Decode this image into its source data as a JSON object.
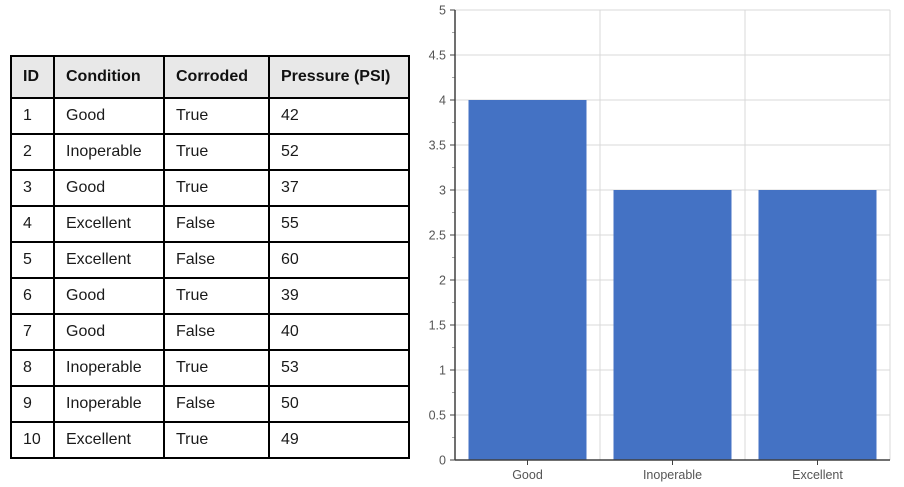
{
  "table": {
    "headers": [
      "ID",
      "Condition",
      "Corroded",
      "Pressure (PSI)"
    ],
    "rows": [
      [
        "1",
        "Good",
        "True",
        "42"
      ],
      [
        "2",
        "Inoperable",
        "True",
        "52"
      ],
      [
        "3",
        "Good",
        "True",
        "37"
      ],
      [
        "4",
        "Excellent",
        "False",
        "55"
      ],
      [
        "5",
        "Excellent",
        "False",
        "60"
      ],
      [
        "6",
        "Good",
        "True",
        "39"
      ],
      [
        "7",
        "Good",
        "False",
        "40"
      ],
      [
        "8",
        "Inoperable",
        "True",
        "53"
      ],
      [
        "9",
        "Inoperable",
        "False",
        "50"
      ],
      [
        "10",
        "Excellent",
        "True",
        "49"
      ]
    ]
  },
  "chart_data": {
    "type": "bar",
    "categories": [
      "Good",
      "Inoperable",
      "Excellent"
    ],
    "values": [
      4,
      3,
      3
    ],
    "title": "",
    "xlabel": "",
    "ylabel": "",
    "ylim": [
      0,
      5
    ],
    "ytick_step": 0.5,
    "ytick_labels": [
      "5",
      "4.5",
      "4",
      "3.5",
      "3",
      "2.5",
      "2",
      "1.5",
      "1",
      "0.5",
      "0"
    ],
    "grid": true,
    "legend_position": "none",
    "colors": {
      "bar": "#4472C4",
      "gridline": "#D9D9D9",
      "axis": "#404040",
      "minor_tick": "#A6A6A6",
      "tick_label": "#555555",
      "table_header_bg": "#E8E8E8",
      "table_border": "#000000"
    }
  }
}
